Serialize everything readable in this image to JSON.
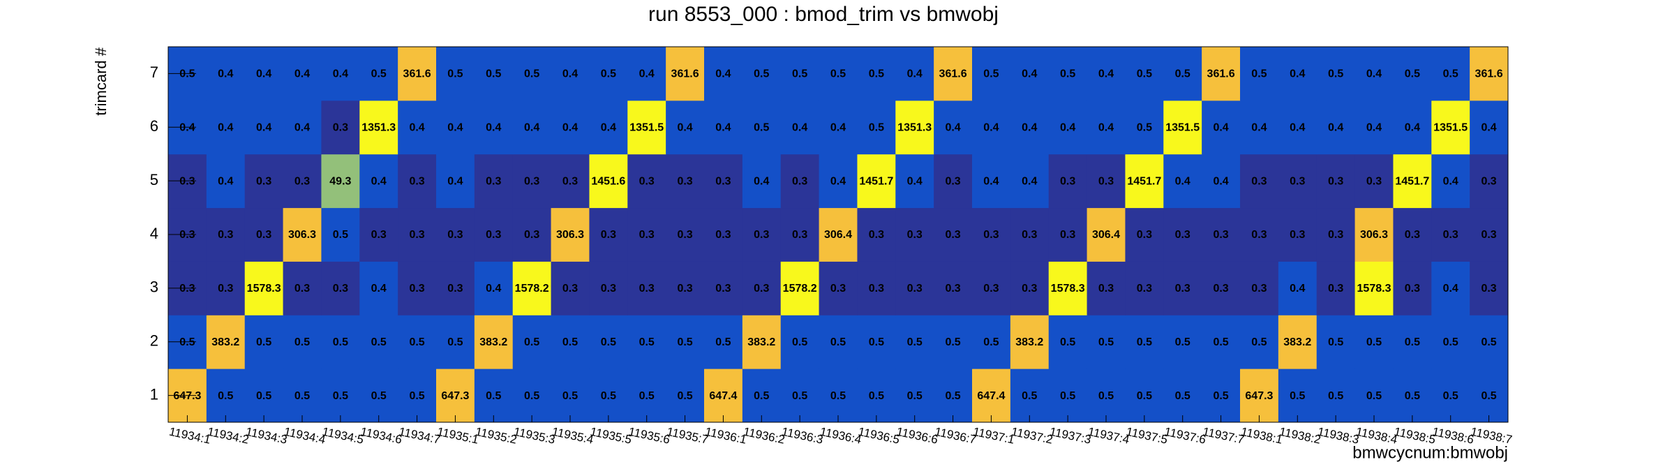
{
  "chart_data": {
    "type": "heatmap",
    "title": "run 8553_000 : bmod_trim vs bmwobj",
    "x_label": "bmwcycnum:bmwobj",
    "y_label": "trimcard #",
    "categories": [
      "11934:1",
      "11934:2",
      "11934:3",
      "11934:4",
      "11934:5",
      "11934:6",
      "11934:7",
      "11935:1",
      "11935:2",
      "11935:3",
      "11935:4",
      "11935:5",
      "11935:6",
      "11935:7",
      "11936:1",
      "11936:2",
      "11936:3",
      "11936:4",
      "11936:5",
      "11936:6",
      "11936:7",
      "11937:1",
      "11937:2",
      "11937:3",
      "11937:4",
      "11937:5",
      "11937:6",
      "11937:7",
      "11938:1",
      "11938:2",
      "11938:3",
      "11938:4",
      "11938:5",
      "11938:6",
      "11938:7"
    ],
    "ylim": [
      0.5,
      7.5
    ],
    "yticks": [
      1,
      2,
      3,
      4,
      5,
      6,
      7
    ],
    "values": [
      [
        647.3,
        0.5,
        0.5,
        0.5,
        0.5,
        0.5,
        0.5,
        647.3,
        0.5,
        0.5,
        0.5,
        0.5,
        0.5,
        0.5,
        647.4,
        0.5,
        0.5,
        0.5,
        0.5,
        0.5,
        0.5,
        647.4,
        0.5,
        0.5,
        0.5,
        0.5,
        0.5,
        0.5,
        647.3,
        0.5,
        0.5,
        0.5,
        0.5,
        0.5,
        0.5
      ],
      [
        0.5,
        383.2,
        0.5,
        0.5,
        0.5,
        0.5,
        0.5,
        0.5,
        383.2,
        0.5,
        0.5,
        0.5,
        0.5,
        0.5,
        0.5,
        383.2,
        0.5,
        0.5,
        0.5,
        0.5,
        0.5,
        0.5,
        383.2,
        0.5,
        0.5,
        0.5,
        0.5,
        0.5,
        0.5,
        383.2,
        0.5,
        0.5,
        0.5,
        0.5,
        0.5
      ],
      [
        0.3,
        0.3,
        1578.3,
        0.3,
        0.3,
        0.4,
        0.3,
        0.3,
        0.4,
        1578.2,
        0.3,
        0.3,
        0.3,
        0.3,
        0.3,
        0.3,
        1578.2,
        0.3,
        0.3,
        0.3,
        0.3,
        0.3,
        0.3,
        1578.3,
        0.3,
        0.3,
        0.3,
        0.3,
        0.3,
        0.4,
        0.3,
        1578.3,
        0.3,
        0.4,
        0.3
      ],
      [
        0.3,
        0.3,
        0.3,
        306.3,
        0.5,
        0.3,
        0.3,
        0.3,
        0.3,
        0.3,
        306.3,
        0.3,
        0.3,
        0.3,
        0.3,
        0.3,
        0.3,
        306.4,
        0.3,
        0.3,
        0.3,
        0.3,
        0.3,
        0.3,
        306.4,
        0.3,
        0.3,
        0.3,
        0.3,
        0.3,
        0.3,
        306.3,
        0.3,
        0.3,
        0.3
      ],
      [
        0.3,
        0.4,
        0.3,
        0.3,
        49.3,
        0.4,
        0.3,
        0.4,
        0.3,
        0.3,
        0.3,
        1451.6,
        0.3,
        0.3,
        0.3,
        0.4,
        0.3,
        0.4,
        1451.7,
        0.4,
        0.3,
        0.4,
        0.4,
        0.3,
        0.3,
        1451.7,
        0.4,
        0.4,
        0.3,
        0.3,
        0.3,
        0.3,
        1451.7,
        0.4,
        0.3
      ],
      [
        0.4,
        0.4,
        0.4,
        0.4,
        0.3,
        1351.3,
        0.4,
        0.4,
        0.4,
        0.4,
        0.4,
        0.4,
        1351.5,
        0.4,
        0.4,
        0.5,
        0.4,
        0.4,
        0.5,
        1351.3,
        0.4,
        0.4,
        0.4,
        0.4,
        0.4,
        0.5,
        1351.5,
        0.4,
        0.4,
        0.4,
        0.4,
        0.4,
        0.4,
        1351.5,
        0.4
      ],
      [
        0.5,
        0.4,
        0.4,
        0.4,
        0.4,
        0.5,
        361.6,
        0.5,
        0.5,
        0.5,
        0.4,
        0.5,
        0.4,
        361.6,
        0.4,
        0.5,
        0.5,
        0.5,
        0.5,
        0.4,
        361.6,
        0.5,
        0.4,
        0.5,
        0.4,
        0.5,
        0.5,
        361.6,
        0.5,
        0.4,
        0.5,
        0.4,
        0.5,
        0.5,
        361.6
      ]
    ],
    "palette": [
      {
        "from": 0,
        "color": "#2b3598"
      },
      {
        "from": 0.4,
        "color": "#1450c8"
      },
      {
        "from": 10,
        "color": "#93c07a"
      },
      {
        "from": 100,
        "color": "#f6c03c"
      },
      {
        "from": 1000,
        "color": "#f8f81c"
      }
    ]
  }
}
